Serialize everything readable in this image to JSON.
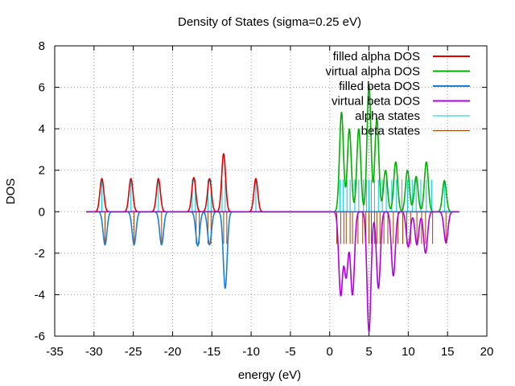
{
  "chart_data": {
    "type": "line",
    "title": "Density of States (sigma=0.25 eV)",
    "xlabel": "energy (eV)",
    "ylabel": "DOS",
    "xlim": [
      -35,
      20
    ],
    "ylim": [
      -6,
      8
    ],
    "x_ticks": [
      "-35",
      "-30",
      "-25",
      "-20",
      "-15",
      "-10",
      "-5",
      "0",
      "5",
      "10",
      "15",
      "20"
    ],
    "y_ticks": [
      "-6",
      "-4",
      "-2",
      "0",
      "2",
      "4",
      "6",
      "8"
    ],
    "grid": true,
    "legend_position": "top-right",
    "sigma": 0.25,
    "x_range": [
      -31,
      16.5
    ],
    "series": [
      {
        "name": "filled alpha DOS",
        "color": "#e00000",
        "sign": 1,
        "peaks": [
          {
            "x": -29.0,
            "h": 1.6
          },
          {
            "x": -25.3,
            "h": 1.6
          },
          {
            "x": -21.8,
            "h": 1.6
          },
          {
            "x": -17.3,
            "h": 1.65
          },
          {
            "x": -15.3,
            "h": 1.6
          },
          {
            "x": -13.5,
            "h": 2.8
          },
          {
            "x": -9.4,
            "h": 1.6
          }
        ]
      },
      {
        "name": "virtual alpha DOS",
        "color": "#00b000",
        "sign": 1,
        "peaks": [
          {
            "x": 1.5,
            "h": 4.8
          },
          {
            "x": 2.5,
            "h": 4.0
          },
          {
            "x": 3.7,
            "h": 4.0
          },
          {
            "x": 5.0,
            "h": 6.1
          },
          {
            "x": 6.0,
            "h": 4.5
          },
          {
            "x": 7.1,
            "h": 2.0
          },
          {
            "x": 8.4,
            "h": 2.4
          },
          {
            "x": 9.9,
            "h": 2.0
          },
          {
            "x": 11.0,
            "h": 1.7
          },
          {
            "x": 12.3,
            "h": 2.4
          },
          {
            "x": 14.6,
            "h": 1.5
          }
        ]
      },
      {
        "name": "filled beta DOS",
        "color": "#1a7fd8",
        "sign": -1,
        "peaks": [
          {
            "x": -28.6,
            "h": 1.6
          },
          {
            "x": -24.9,
            "h": 1.6
          },
          {
            "x": -21.4,
            "h": 1.6
          },
          {
            "x": -16.8,
            "h": 1.65
          },
          {
            "x": -15.3,
            "h": 1.6
          },
          {
            "x": -13.3,
            "h": 3.7
          }
        ]
      },
      {
        "name": "virtual beta DOS",
        "color": "#b000e0",
        "sign": -1,
        "peaks": [
          {
            "x": 1.4,
            "h": 4.0
          },
          {
            "x": 2.1,
            "h": 3.1
          },
          {
            "x": 2.9,
            "h": 4.0
          },
          {
            "x": 5.0,
            "h": 5.8
          },
          {
            "x": 6.2,
            "h": 3.7
          },
          {
            "x": 8.1,
            "h": 3.1
          },
          {
            "x": 10.0,
            "h": 1.7
          },
          {
            "x": 11.1,
            "h": 1.6
          },
          {
            "x": 12.2,
            "h": 2.0
          },
          {
            "x": 14.8,
            "h": 1.5
          }
        ]
      }
    ],
    "stick_series": [
      {
        "name": "alpha states",
        "color": "#00c8d8",
        "direction": 1,
        "height": 1.55,
        "x": [
          -29.0,
          -25.3,
          -21.8,
          -17.5,
          -17.1,
          -15.5,
          -15.1,
          -13.7,
          -13.3,
          -9.4,
          1.3,
          1.7,
          2.2,
          2.6,
          3.2,
          3.7,
          4.3,
          4.7,
          5.0,
          5.3,
          5.7,
          6.2,
          6.7,
          7.2,
          7.9,
          8.5,
          9.2,
          9.9,
          10.5,
          11.0,
          11.6,
          12.3,
          13.0,
          14.6
        ]
      },
      {
        "name": "beta states",
        "color": "#a04000",
        "direction": -1,
        "height": 1.55,
        "x": [
          -28.6,
          -24.9,
          -21.4,
          -17.0,
          -16.6,
          -15.5,
          -15.1,
          -13.5,
          -13.1,
          0.9,
          1.4,
          1.8,
          2.1,
          2.6,
          2.9,
          3.6,
          4.2,
          4.6,
          5.0,
          5.3,
          5.7,
          6.0,
          6.4,
          6.9,
          7.4,
          8.1,
          8.7,
          9.3,
          9.8,
          10.3,
          11.1,
          11.7,
          12.2,
          13.1,
          14.8
        ]
      }
    ]
  }
}
